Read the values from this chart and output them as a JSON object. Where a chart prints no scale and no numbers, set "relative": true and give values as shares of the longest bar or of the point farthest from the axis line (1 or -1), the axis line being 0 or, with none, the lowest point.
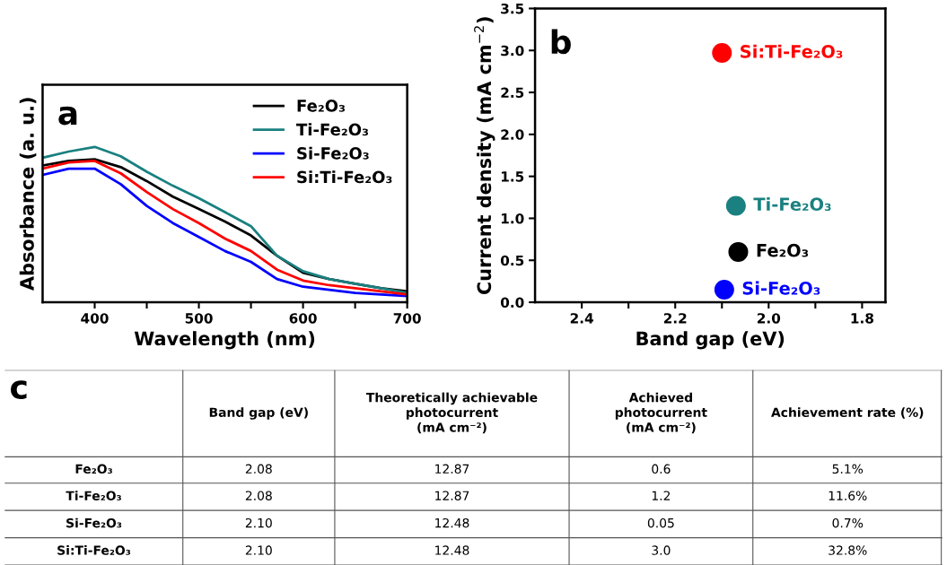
{
  "chart_data": [
    {
      "type": "line",
      "title": "a",
      "xlabel": "Wavelength (nm)",
      "ylabel": "Absorbance (a. u.)",
      "relative": true,
      "legend": "top right",
      "tick_labels": "x",
      "x": [
        350,
        375,
        400,
        425,
        450,
        475,
        500,
        525,
        550,
        575,
        600,
        625,
        650,
        675,
        700
      ],
      "xlim": [
        350,
        700
      ],
      "xticks": [
        400,
        {
          "value": 450,
          "label": null
        },
        500,
        {
          "value": 550,
          "label": null
        },
        600,
        {
          "value": 650,
          "label": null
        },
        700
      ],
      "series": [
        {
          "name": "Fe₂O₃",
          "color": "#000000",
          "values": [
            0.88,
            0.91,
            0.92,
            0.87,
            0.78,
            0.68,
            0.6,
            0.52,
            0.43,
            0.3,
            0.19,
            0.15,
            0.12,
            0.09,
            0.07
          ]
        },
        {
          "name": "Ti-Fe₂O₃",
          "color": "#1a8080",
          "values": [
            0.93,
            0.97,
            1.0,
            0.94,
            0.84,
            0.75,
            0.67,
            0.58,
            0.49,
            0.3,
            0.2,
            0.15,
            0.12,
            0.09,
            0.06
          ]
        },
        {
          "name": "Si-Fe₂O₃",
          "color": "#0000ff",
          "values": [
            0.82,
            0.86,
            0.86,
            0.76,
            0.62,
            0.51,
            0.42,
            0.33,
            0.26,
            0.15,
            0.1,
            0.08,
            0.06,
            0.05,
            0.04
          ]
        },
        {
          "name": "Si:Ti-Fe₂O₃",
          "color": "#ff0000",
          "values": [
            0.86,
            0.9,
            0.91,
            0.83,
            0.71,
            0.6,
            0.51,
            0.41,
            0.33,
            0.21,
            0.14,
            0.11,
            0.09,
            0.07,
            0.05
          ]
        }
      ]
    },
    {
      "type": "scatter",
      "title": "b",
      "xlabel": "Band gap (eV)",
      "ylabel": "Current density (mA cm$^{−2}$)",
      "legend": false,
      "marker": "circle",
      "xlim": [
        2.5,
        1.75
      ],
      "xticks": [
        2.4,
        {
          "value": 2.3,
          "label": null
        },
        2.2,
        {
          "value": 2.1,
          "label": null
        },
        {
          "value": 2.0,
          "label": "2.0"
        },
        {
          "value": 1.9,
          "label": null
        },
        1.8
      ],
      "ylim": [
        0,
        3.5
      ],
      "yticks": [
        {
          "value": 0,
          "label": "0.0"
        },
        0.5,
        {
          "value": 1,
          "label": "1.0"
        },
        1.5,
        {
          "value": 2,
          "label": "2.0"
        },
        2.5,
        {
          "value": 3,
          "label": "3.0"
        },
        3.5
      ],
      "series": [
        {
          "name": "Si:Ti-Fe₂O₃",
          "color": "#ff0000",
          "x": [
            2.1
          ],
          "values": [
            2.97
          ]
        },
        {
          "name": "Ti-Fe₂O₃",
          "color": "#1a8080",
          "x": [
            2.07
          ],
          "values": [
            1.15
          ]
        },
        {
          "name": "Fe₂O₃",
          "color": "#000000",
          "x": [
            2.065
          ],
          "values": [
            0.6
          ]
        },
        {
          "name": "Si-Fe₂O₃",
          "color": "#0000ff",
          "x": [
            2.095
          ],
          "values": [
            0.15
          ]
        }
      ]
    },
    {
      "type": "other",
      "title": "c",
      "categories": [
        "Band gap (eV)",
        "Theoretically achievable\nphotocurrent\n(mA cm⁻²)",
        "Achieved\nphotocurrent\n(mA cm⁻²)",
        "Achievement rate (%)"
      ],
      "y_categories": [
        "Fe₂O₃",
        "Ti-Fe₂O₃",
        "Si-Fe₂O₃",
        "Si:Ti-Fe₂O₃"
      ],
      "cell_labels": [
        [
          "2.08",
          "12.87",
          "0.6",
          "5.1%"
        ],
        [
          "2.08",
          "12.87",
          "1.2",
          "11.6%"
        ],
        [
          "2.10",
          "12.48",
          "0.05",
          "0.7%"
        ],
        [
          "2.10",
          "12.48",
          "3.0",
          "32.8%"
        ]
      ]
    }
  ]
}
